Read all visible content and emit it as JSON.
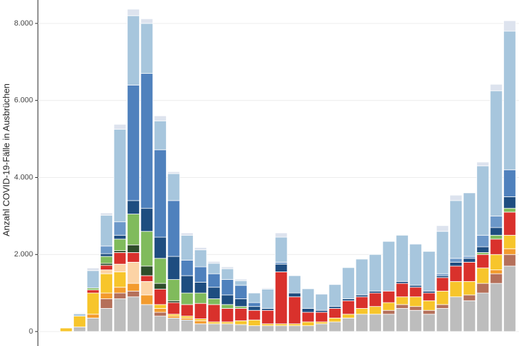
{
  "chart_data": {
    "type": "stacked_bar",
    "y_label": "Anzahl COVID-19-Fälle in Ausbrüchen",
    "ylim": [
      -376,
      8608
    ],
    "yticks": [
      {
        "value": 0,
        "label": "0"
      },
      {
        "value": 2000,
        "label": "2.000"
      },
      {
        "value": 4000,
        "label": "4.000"
      },
      {
        "value": 6000,
        "label": "6.000"
      },
      {
        "value": 8000,
        "label": "8.000"
      }
    ],
    "grid": true,
    "categories": [
      null,
      null,
      null,
      null,
      null,
      null,
      null,
      null,
      null,
      null,
      null,
      null,
      null,
      null,
      null,
      null,
      null,
      null,
      null,
      null,
      null,
      null,
      null,
      null,
      null,
      null,
      null,
      null,
      null,
      null,
      null,
      null,
      null,
      null
    ],
    "series": [
      {
        "color": "#bdbdbd",
        "values": [
          0,
          120,
          350,
          600,
          850,
          900,
          700,
          400,
          350,
          300,
          200,
          200,
          200,
          180,
          150,
          150,
          150,
          150,
          150,
          200,
          250,
          350,
          450,
          450,
          450,
          600,
          550,
          450,
          600,
          900,
          800,
          1000,
          1250,
          1700
        ]
      },
      {
        "color": "#b5705a",
        "values": [
          0,
          0,
          0,
          250,
          150,
          150,
          0,
          100,
          0,
          0,
          0,
          0,
          0,
          0,
          0,
          0,
          0,
          0,
          0,
          0,
          0,
          0,
          0,
          0,
          100,
          100,
          100,
          100,
          100,
          0,
          150,
          250,
          250,
          300
        ]
      },
      {
        "color": "#f39b2e",
        "values": [
          0,
          0,
          100,
          150,
          150,
          200,
          250,
          100,
          50,
          50,
          80,
          0,
          0,
          0,
          0,
          0,
          0,
          0,
          0,
          0,
          0,
          0,
          0,
          0,
          0,
          0,
          0,
          0,
          0,
          0,
          0,
          0,
          100,
          150
        ]
      },
      {
        "color": "#f7c52b",
        "values": [
          90,
          280,
          550,
          500,
          400,
          0,
          0,
          100,
          50,
          50,
          50,
          50,
          50,
          100,
          150,
          50,
          50,
          50,
          100,
          50,
          100,
          100,
          150,
          200,
          200,
          200,
          250,
          250,
          350,
          400,
          350,
          400,
          400,
          350
        ]
      },
      {
        "color": "#fcd3a5",
        "values": [
          0,
          0,
          0,
          100,
          200,
          550,
          350,
          0,
          0,
          0,
          0,
          0,
          0,
          0,
          0,
          0,
          0,
          0,
          0,
          0,
          0,
          0,
          0,
          0,
          0,
          0,
          0,
          0,
          0,
          0,
          0,
          0,
          0,
          0
        ]
      },
      {
        "color": "#d9312c",
        "values": [
          0,
          0,
          80,
          120,
          300,
          250,
          150,
          400,
          300,
          300,
          400,
          450,
          350,
          320,
          250,
          350,
          1350,
          700,
          250,
          250,
          250,
          350,
          300,
          350,
          300,
          350,
          250,
          200,
          350,
          400,
          500,
          350,
          400,
          600
        ]
      },
      {
        "color": "#2e4d2a",
        "values": [
          0,
          0,
          0,
          50,
          50,
          200,
          250,
          150,
          50,
          0,
          0,
          0,
          0,
          0,
          0,
          0,
          0,
          0,
          0,
          0,
          0,
          0,
          0,
          0,
          0,
          0,
          0,
          0,
          0,
          0,
          0,
          0,
          0,
          0
        ]
      },
      {
        "color": "#80bb5c",
        "values": [
          0,
          0,
          50,
          180,
          300,
          800,
          900,
          650,
          550,
          300,
          270,
          150,
          100,
          50,
          0,
          0,
          0,
          0,
          0,
          0,
          0,
          0,
          0,
          0,
          0,
          0,
          0,
          0,
          0,
          0,
          0,
          50,
          100,
          100
        ]
      },
      {
        "color": "#1e4d80",
        "values": [
          0,
          0,
          0,
          70,
          100,
          350,
          600,
          550,
          600,
          450,
          280,
          300,
          250,
          200,
          100,
          50,
          200,
          100,
          100,
          50,
          50,
          50,
          50,
          50,
          0,
          50,
          50,
          50,
          50,
          100,
          100,
          150,
          200,
          300
        ]
      },
      {
        "color": "#4f81bd",
        "values": [
          0,
          0,
          0,
          0,
          0,
          3000,
          3500,
          2270,
          1450,
          400,
          400,
          350,
          400,
          350,
          100,
          0,
          0,
          0,
          0,
          0,
          0,
          0,
          0,
          0,
          0,
          0,
          0,
          0,
          0,
          0,
          0,
          0,
          0,
          700
        ]
      },
      {
        "color": "#6c98c9",
        "values": [
          0,
          0,
          0,
          200,
          350,
          0,
          0,
          0,
          0,
          0,
          0,
          0,
          0,
          0,
          0,
          0,
          50,
          0,
          0,
          0,
          0,
          0,
          0,
          0,
          0,
          0,
          0,
          0,
          50,
          100,
          50,
          300,
          300,
          0
        ]
      },
      {
        "color": "#a7c6dd",
        "values": [
          0,
          60,
          450,
          800,
          2400,
          1800,
          1300,
          750,
          700,
          650,
          440,
          270,
          280,
          120,
          250,
          500,
          650,
          450,
          510,
          420,
          570,
          810,
          930,
          950,
          1290,
          1200,
          1070,
          1030,
          1100,
          1500,
          1650,
          1800,
          3250,
          3600
        ]
      },
      {
        "color": "#dde3ee",
        "values": [
          0,
          20,
          70,
          60,
          130,
          170,
          120,
          130,
          50,
          60,
          60,
          50,
          50,
          40,
          0,
          30,
          110,
          0,
          0,
          0,
          0,
          0,
          0,
          0,
          0,
          0,
          0,
          0,
          150,
          140,
          0,
          100,
          170,
          270
        ]
      }
    ]
  }
}
